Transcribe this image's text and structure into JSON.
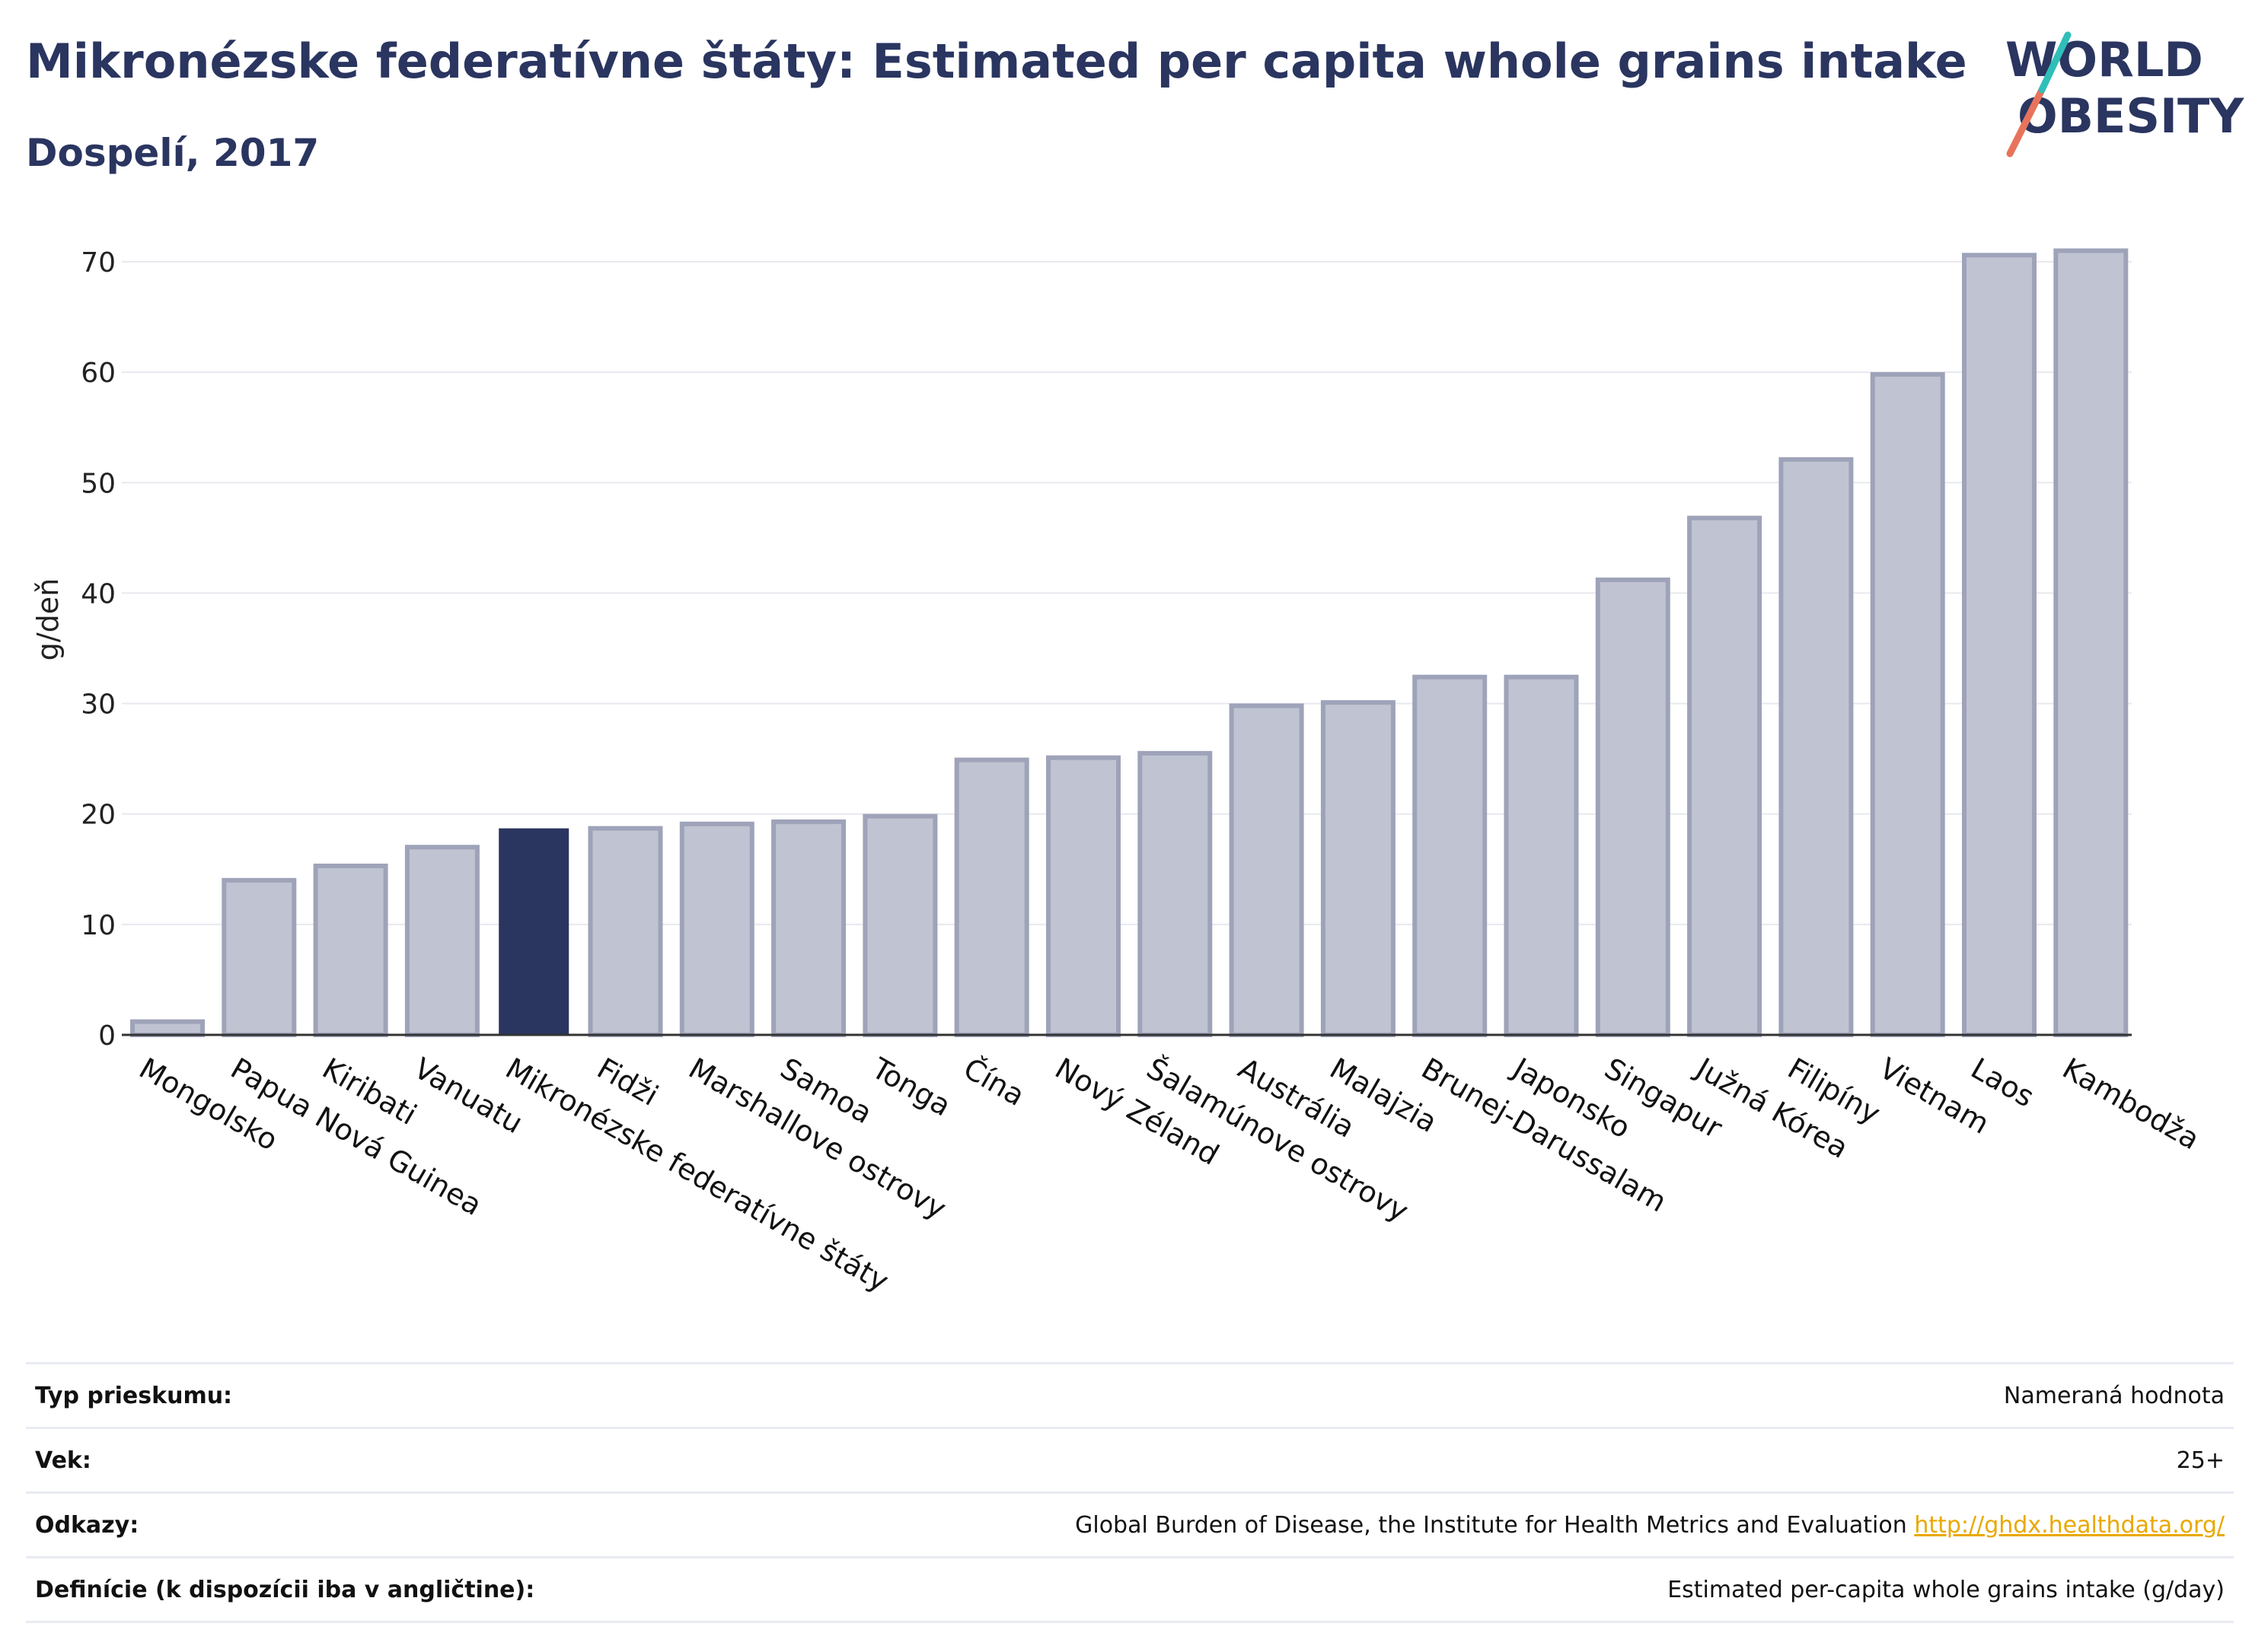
{
  "header": {
    "title": "Mikronézske federatívne štáty: Estimated per capita whole grains intake",
    "subtitle": "Dospelí, 2017"
  },
  "logo": {
    "line1": "WORLD",
    "line2": "OBESITY"
  },
  "colors": {
    "highlight": "#2a3560",
    "bar_fill": "#c0c3d1",
    "bar_stroke": "#9ea3b9",
    "grid": "#e8e9ef",
    "text": "#2a3560"
  },
  "chart_data": {
    "type": "bar",
    "ylabel": "g/deň",
    "ylim": [
      0,
      72
    ],
    "yticks": [
      0,
      10,
      20,
      30,
      40,
      50,
      60,
      70
    ],
    "grid": true,
    "highlight_category": "Mikronézske federatívne štáty",
    "categories": [
      "Mongolsko",
      "Papua Nová Guinea",
      "Kiribati",
      "Vanuatu",
      "Mikronézske federatívne štáty",
      "Fidži",
      "Marshallove ostrovy",
      "Samoa",
      "Tonga",
      "Čína",
      "Nový Zéland",
      "Šalamúnove ostrovy",
      "Austrália",
      "Malajzia",
      "Brunej-Darussalam",
      "Japonsko",
      "Singapur",
      "Južná Kórea",
      "Filipíny",
      "Vietnam",
      "Laos",
      "Kambodža"
    ],
    "values": [
      1.2,
      14.0,
      15.3,
      17.0,
      18.7,
      18.7,
      19.1,
      19.3,
      19.8,
      24.9,
      25.1,
      25.5,
      29.8,
      30.1,
      32.4,
      32.4,
      41.2,
      46.8,
      52.1,
      59.8,
      70.6,
      71.0
    ]
  },
  "info_table": [
    {
      "key": "Typ prieskumu:",
      "value": "Nameraná hodnota",
      "link": ""
    },
    {
      "key": "Vek:",
      "value": "25+",
      "link": ""
    },
    {
      "key": "Odkazy:",
      "value": "Global Burden of Disease, the Institute for Health Metrics and Evaluation",
      "link": "http://ghdx.healthdata.org/"
    },
    {
      "key": "Definície (k dispozícii iba v angličtine):",
      "value": "Estimated per-capita whole grains intake (g/day)",
      "link": ""
    }
  ]
}
